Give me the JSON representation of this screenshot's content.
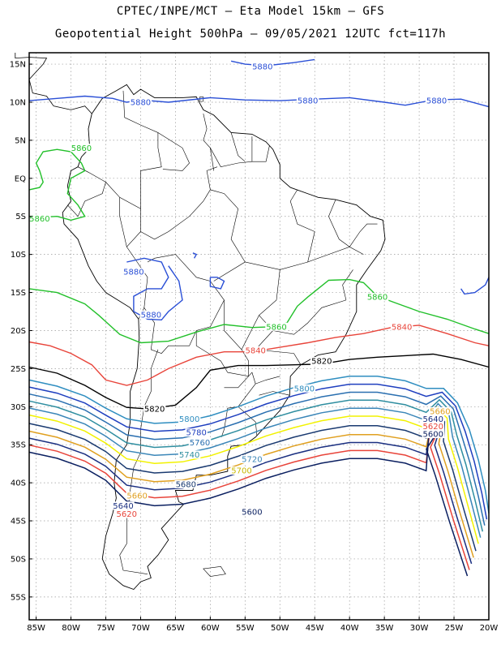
{
  "header": {
    "line1": "CPTEC/INPE/MCT –  Eta Model 15km – GFS",
    "line2": "Geopotential Height 500hPa – 09/05/2021 12UTC fct=117h"
  },
  "axes": {
    "lat_labels": [
      "15N",
      "10N",
      "5N",
      "EQ",
      "5S",
      "10S",
      "15S",
      "20S",
      "25S",
      "30S",
      "35S",
      "40S",
      "45S",
      "50S",
      "55S"
    ],
    "lat_values": [
      15,
      10,
      5,
      0,
      -5,
      -10,
      -15,
      -20,
      -25,
      -30,
      -35,
      -40,
      -45,
      -50,
      -55
    ],
    "lon_labels": [
      "85W",
      "80W",
      "75W",
      "70W",
      "65W",
      "60W",
      "55W",
      "50W",
      "45W",
      "40W",
      "35W",
      "30W",
      "25W",
      "20W"
    ],
    "lon_values": [
      -85,
      -80,
      -75,
      -70,
      -65,
      -60,
      -55,
      -50,
      -45,
      -40,
      -35,
      -30,
      -25,
      -20
    ],
    "lon_range": [
      -86,
      -20
    ],
    "lat_range": [
      -58,
      16.5
    ],
    "grid": true
  },
  "contours": [
    {
      "value": "5880",
      "color": "#2a4fd6"
    },
    {
      "value": "5860",
      "color": "#22c02a"
    },
    {
      "value": "5840",
      "color": "#e8443a"
    },
    {
      "value": "5820",
      "color": "#000000"
    },
    {
      "value": "5800",
      "color": "#2f8ec0"
    },
    {
      "value": "5780",
      "color": "#1f3fbf"
    },
    {
      "value": "5760",
      "color": "#2a6fb0"
    },
    {
      "value": "5740",
      "color": "#2f8ea0"
    },
    {
      "value": "5720",
      "color": "#3a86b8"
    },
    {
      "value": "5700",
      "color": "#f2f200"
    },
    {
      "value": "5680",
      "color": "#1a3a70"
    },
    {
      "value": "5660",
      "color": "#e0a020"
    },
    {
      "value": "5640",
      "color": "#1a2f80"
    },
    {
      "value": "5620",
      "color": "#e8443a"
    },
    {
      "value": "5600",
      "color": "#0a1f60"
    }
  ],
  "labels": [
    {
      "text": "5880",
      "color": "#2a4fd6",
      "lon": -52.5,
      "lat": 14.7
    },
    {
      "text": "5880",
      "color": "#2a4fd6",
      "lon": -70,
      "lat": 10.0
    },
    {
      "text": "5880",
      "color": "#2a4fd6",
      "lon": -46,
      "lat": 10.2
    },
    {
      "text": "5880",
      "color": "#2a4fd6",
      "lon": -27.5,
      "lat": 10.2
    },
    {
      "text": "5860",
      "color": "#22c02a",
      "lon": -78.5,
      "lat": 4.0
    },
    {
      "text": "5860",
      "color": "#22c02a",
      "lon": -84.5,
      "lat": -5.3
    },
    {
      "text": "5880",
      "color": "#2a4fd6",
      "lon": -71,
      "lat": -12.3
    },
    {
      "text": "5880",
      "color": "#2a4fd6",
      "lon": -68.5,
      "lat": -17.9
    },
    {
      "text": "5860",
      "color": "#22c02a",
      "lon": -50.5,
      "lat": -19.5
    },
    {
      "text": "5860",
      "color": "#22c02a",
      "lon": -36,
      "lat": -15.6
    },
    {
      "text": "5840",
      "color": "#e8443a",
      "lon": -53.5,
      "lat": -22.6
    },
    {
      "text": "5840",
      "color": "#e8443a",
      "lon": -32.5,
      "lat": -19.5
    },
    {
      "text": "5820",
      "color": "#000000",
      "lon": -44,
      "lat": -24.0
    },
    {
      "text": "5820",
      "color": "#000000",
      "lon": -68,
      "lat": -30.3
    },
    {
      "text": "5800",
      "color": "#2f8ec0",
      "lon": -46.5,
      "lat": -27.6
    },
    {
      "text": "5800",
      "color": "#2f8ec0",
      "lon": -63,
      "lat": -31.6
    },
    {
      "text": "5780",
      "color": "#1f3fbf",
      "lon": -62,
      "lat": -33.4
    },
    {
      "text": "5760",
      "color": "#2a6fb0",
      "lon": -61.5,
      "lat": -34.7
    },
    {
      "text": "5740",
      "color": "#2f8ea0",
      "lon": -63,
      "lat": -36.3
    },
    {
      "text": "5720",
      "color": "#3a86b8",
      "lon": -54,
      "lat": -36.9
    },
    {
      "text": "5700",
      "color": "#c8b800",
      "lon": -55.5,
      "lat": -38.4
    },
    {
      "text": "5680",
      "color": "#1a3a70",
      "lon": -63.5,
      "lat": -40.2
    },
    {
      "text": "5660",
      "color": "#e0a020",
      "lon": -70.5,
      "lat": -41.7
    },
    {
      "text": "5640",
      "color": "#1a2f80",
      "lon": -72.5,
      "lat": -43.0
    },
    {
      "text": "5620",
      "color": "#e8443a",
      "lon": -72,
      "lat": -44.1
    },
    {
      "text": "5600",
      "color": "#0a1f60",
      "lon": -54,
      "lat": -43.8
    },
    {
      "text": "5660",
      "color": "#e0a020",
      "lon": -27,
      "lat": -30.6
    },
    {
      "text": "5640",
      "color": "#1a2f80",
      "lon": -28,
      "lat": -31.6
    },
    {
      "text": "5620",
      "color": "#e8443a",
      "lon": -28,
      "lat": -32.6
    },
    {
      "text": "5600",
      "color": "#0a1f60",
      "lon": -28,
      "lat": -33.6
    }
  ]
}
